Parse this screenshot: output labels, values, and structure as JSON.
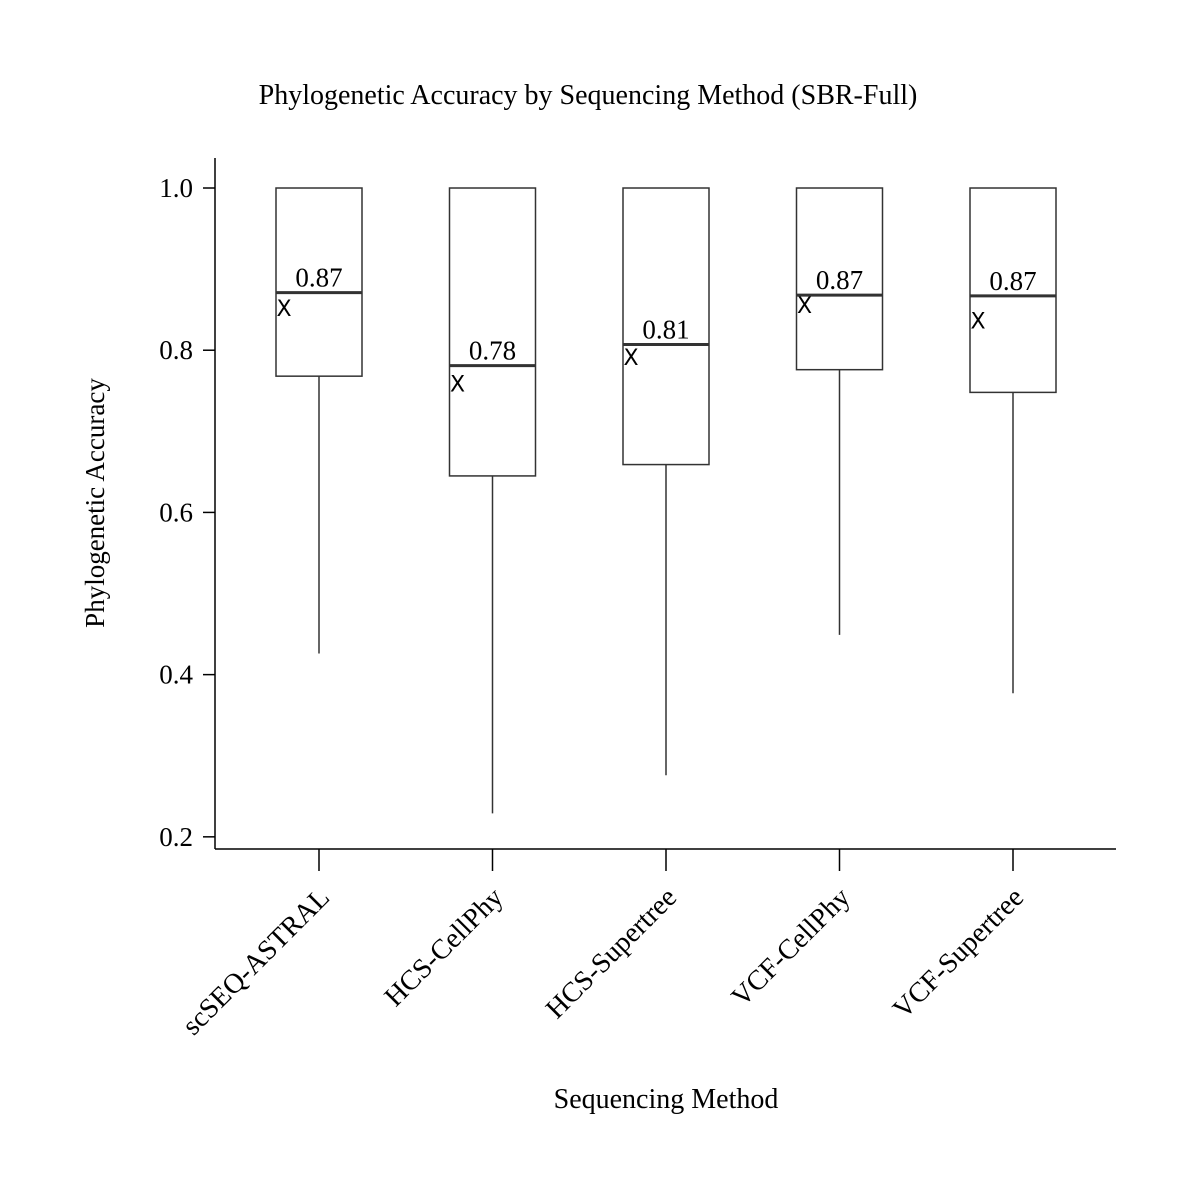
{
  "chart_data": {
    "type": "box",
    "title": "Phylogenetic Accuracy by Sequencing Method (SBR-Full)",
    "xlabel": "Sequencing Method",
    "ylabel": "Phylogenetic Accuracy",
    "ylim": [
      0.185,
      1.037
    ],
    "yticks": [
      0.2,
      0.4,
      0.6,
      0.8,
      1.0
    ],
    "ytick_labels": [
      "0.2",
      "0.4",
      "0.6",
      "0.8",
      "1.0"
    ],
    "grid": false,
    "legend": "none",
    "mean_marker": "X",
    "colors": {
      "box_edge": "#333333",
      "median": "#333333",
      "text": "#000000"
    },
    "categories": [
      "scSEQ-ASTRAL",
      "HCS-CellPhy",
      "HCS-Supertree",
      "VCF-CellPhy",
      "VCF-Supertree"
    ],
    "boxes": [
      {
        "category": "scSEQ-ASTRAL",
        "whisker_low": 0.426,
        "q1": 0.768,
        "median": 0.871,
        "q3": 1.0,
        "whisker_high": 1.0,
        "mean": 0.853,
        "median_label": "0.87"
      },
      {
        "category": "HCS-CellPhy",
        "whisker_low": 0.229,
        "q1": 0.645,
        "median": 0.781,
        "q3": 1.0,
        "whisker_high": 1.0,
        "mean": 0.76,
        "median_label": "0.78"
      },
      {
        "category": "HCS-Supertree",
        "whisker_low": 0.276,
        "q1": 0.659,
        "median": 0.807,
        "q3": 1.0,
        "whisker_high": 1.0,
        "mean": 0.793,
        "median_label": "0.81"
      },
      {
        "category": "VCF-CellPhy",
        "whisker_low": 0.449,
        "q1": 0.776,
        "median": 0.868,
        "q3": 1.0,
        "whisker_high": 1.0,
        "mean": 0.857,
        "median_label": "0.87"
      },
      {
        "category": "VCF-Supertree",
        "whisker_low": 0.377,
        "q1": 0.748,
        "median": 0.867,
        "q3": 1.0,
        "whisker_high": 1.0,
        "mean": 0.838,
        "median_label": "0.87"
      }
    ]
  }
}
